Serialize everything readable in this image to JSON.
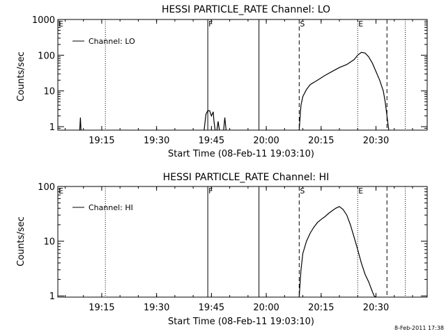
{
  "footer": {
    "timestamp": "8-Feb-2011 17:38"
  },
  "chart_data": [
    {
      "type": "line",
      "title": "HESSI PARTICLE_RATE Channel: LO",
      "xlabel": "Start Time (08-Feb-11 19:03:10)",
      "ylabel": "Counts/sec",
      "yscale": "log",
      "xlim": [
        "19:03",
        "20:44"
      ],
      "ylim": [
        0.8,
        1000
      ],
      "x_ticks": [
        "19:15",
        "19:30",
        "19:45",
        "20:00",
        "20:15",
        "20:30"
      ],
      "y_ticks": [
        "1",
        "10",
        "100",
        "1000"
      ],
      "legend": {
        "placement": "top-left",
        "entries": [
          "Channel: LO"
        ]
      },
      "markers": [
        {
          "label": "E",
          "time": "19:03",
          "style": "solid"
        },
        {
          "label": "",
          "time": "19:16",
          "style": "dotted"
        },
        {
          "label": "F",
          "time": "19:44",
          "style": "solid"
        },
        {
          "label": "",
          "time": "19:58",
          "style": "solid"
        },
        {
          "label": "S",
          "time": "20:09",
          "style": "dashed"
        },
        {
          "label": "E",
          "time": "20:25",
          "style": "dotted"
        },
        {
          "label": "",
          "time": "20:33",
          "style": "dashed"
        },
        {
          "label": "",
          "time": "20:38",
          "style": "dotted"
        }
      ],
      "series": [
        {
          "name": "Channel: LO",
          "segments": [
            {
              "t": [
                19.1497,
                19.1528,
                19.1556
              ],
              "y": [
                0.8,
                1.8,
                0.8
              ]
            },
            {
              "t": [
                19.7167,
                19.725,
                19.7333,
                19.7417,
                19.75,
                19.7583,
                19.7611,
                19.7667
              ],
              "y": [
                0.8,
                2.2,
                2.8,
                2.8,
                2.0,
                2.6,
                1.5,
                0.8
              ]
            },
            {
              "t": [
                19.775,
                19.7806,
                19.7861
              ],
              "y": [
                0.8,
                1.4,
                0.8
              ]
            },
            {
              "t": [
                19.8056,
                19.8111,
                19.8167
              ],
              "y": [
                0.8,
                1.8,
                0.8
              ]
            },
            {
              "t": [
                20.15,
                20.1583,
                20.1667,
                20.1833,
                20.2,
                20.2333,
                20.2667,
                20.3,
                20.3333,
                20.3667,
                20.4,
                20.4167,
                20.4333,
                20.45,
                20.4667,
                20.4833,
                20.5,
                20.5167,
                20.5333,
                20.5417,
                20.55,
                20.5583
              ],
              "y": [
                0.8,
                4,
                7,
                11,
                15,
                20,
                27,
                35,
                45,
                55,
                75,
                100,
                120,
                115,
                90,
                60,
                35,
                20,
                10,
                5,
                2,
                0.8
              ]
            }
          ]
        }
      ]
    },
    {
      "type": "line",
      "title": "HESSI PARTICLE_RATE Channel: HI",
      "xlabel": "Start Time (08-Feb-11 19:03:10)",
      "ylabel": "Counts/sec",
      "yscale": "log",
      "xlim": [
        "19:03",
        "20:44"
      ],
      "ylim": [
        0.95,
        100
      ],
      "x_ticks": [
        "19:15",
        "19:30",
        "19:45",
        "20:00",
        "20:15",
        "20:30"
      ],
      "y_ticks": [
        "1",
        "10",
        "100"
      ],
      "legend": {
        "placement": "top-left",
        "entries": [
          "Channel: HI"
        ]
      },
      "markers": [
        {
          "label": "E",
          "time": "19:03",
          "style": "solid"
        },
        {
          "label": "",
          "time": "19:16",
          "style": "dotted"
        },
        {
          "label": "F",
          "time": "19:44",
          "style": "solid"
        },
        {
          "label": "",
          "time": "19:58",
          "style": "solid"
        },
        {
          "label": "S",
          "time": "20:09",
          "style": "dashed"
        },
        {
          "label": "E",
          "time": "20:25",
          "style": "dotted"
        },
        {
          "label": "",
          "time": "20:33",
          "style": "dashed"
        },
        {
          "label": "",
          "time": "20:38",
          "style": "dotted"
        }
      ],
      "series": [
        {
          "name": "Channel: HI",
          "segments": [
            {
              "t": [
                20.15,
                20.1583,
                20.1667,
                20.1833,
                20.2,
                20.2167,
                20.2333,
                20.25,
                20.2667,
                20.2833,
                20.3,
                20.3167,
                20.3333,
                20.35,
                20.3667,
                20.3833,
                20.4,
                20.4167,
                20.4333,
                20.45,
                20.4667,
                20.4833,
                20.4917,
                20.5
              ],
              "y": [
                0.95,
                3,
                6,
                10,
                14,
                18,
                22,
                25,
                28,
                32,
                36,
                40,
                43,
                38,
                30,
                20,
                12,
                7,
                4,
                2.5,
                1.8,
                1.2,
                1.0,
                0.95
              ]
            }
          ]
        }
      ]
    }
  ]
}
